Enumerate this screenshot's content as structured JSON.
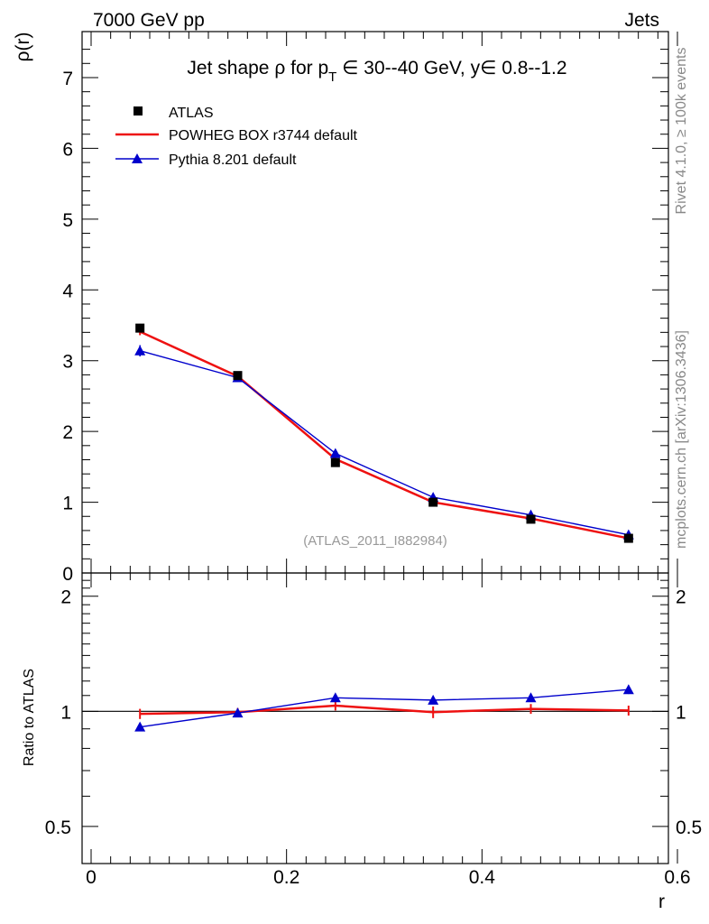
{
  "header": {
    "left": "7000 GeV pp",
    "right": "Jets"
  },
  "side_labels": {
    "rivet": "Rivet 4.1.0, ≥ 100k events",
    "mcplots": "mcplots.cern.ch [arXiv:1306.3436]"
  },
  "colors": {
    "atlas": "#000000",
    "powheg": "#ee1111",
    "pythia": "#0000cc",
    "watermark": "#999999"
  },
  "chart_data": [
    {
      "type": "line",
      "title_parts": {
        "prefix": "Jet shape ",
        "rho": "ρ",
        "for": " for p",
        "sub": "T",
        "rest": " ∈ 30--40 GeV, y∈ 0.8--1.2"
      },
      "ylabel": "ρ(r)",
      "xlabel": "",
      "xlim": [
        0,
        0.6
      ],
      "ylim": [
        0,
        7.65
      ],
      "yticks": [
        0,
        1,
        2,
        3,
        4,
        5,
        6,
        7
      ],
      "ytick_labels": [
        "0",
        "1",
        "2",
        "3",
        "4",
        "5",
        "6",
        "7"
      ],
      "watermark": "(ATLAS_2011_I882984)",
      "x": [
        0.05,
        0.15,
        0.25,
        0.35,
        0.45,
        0.55
      ],
      "series": [
        {
          "name": "ATLAS",
          "style": "marker-square",
          "values": [
            3.46,
            2.79,
            1.56,
            1.0,
            0.76,
            0.49
          ],
          "errors": [
            0.06,
            0.05,
            0.04,
            0.03,
            0.03,
            0.02
          ]
        },
        {
          "name": "POWHEG BOX r3744 default",
          "style": "line",
          "values": [
            3.41,
            2.78,
            1.61,
            1.0,
            0.77,
            0.49
          ],
          "errors": [
            0.05,
            0.04,
            0.03,
            0.03,
            0.02,
            0.02
          ]
        },
        {
          "name": "Pythia 8.201 default",
          "style": "line-triangle",
          "values": [
            3.14,
            2.76,
            1.69,
            1.07,
            0.82,
            0.54
          ],
          "errors": [
            0.08,
            0.05,
            0.04,
            0.03,
            0.02,
            0.02
          ]
        }
      ],
      "legend": [
        "ATLAS",
        "POWHEG BOX r3744 default",
        "Pythia 8.201 default"
      ],
      "legend_position": "top-left"
    },
    {
      "type": "line",
      "ylabel": "Ratio to ATLAS",
      "xlabel": "r",
      "xlim": [
        0,
        0.6
      ],
      "ylim": [
        0.4,
        2.3
      ],
      "yscale": "log",
      "yticks": [
        0.5,
        1,
        2
      ],
      "ytick_labels": [
        "0.5",
        "1",
        "2"
      ],
      "xticks": [
        0,
        0.2,
        0.4,
        0.6
      ],
      "xtick_labels": [
        "0",
        "0.2",
        "0.4",
        "0.6"
      ],
      "x": [
        0.05,
        0.15,
        0.25,
        0.35,
        0.45,
        0.55
      ],
      "series": [
        {
          "name": "POWHEG BOX r3744 default",
          "values": [
            0.985,
            0.995,
            1.035,
            0.995,
            1.015,
            1.005
          ],
          "errors": [
            0.03,
            0.025,
            0.03,
            0.035,
            0.03,
            0.03
          ]
        },
        {
          "name": "Pythia 8.201 default",
          "values": [
            0.91,
            0.99,
            1.085,
            1.07,
            1.085,
            1.14
          ],
          "errors": [
            0.015,
            0.015,
            0.02,
            0.025,
            0.025,
            0.03
          ]
        }
      ]
    }
  ]
}
